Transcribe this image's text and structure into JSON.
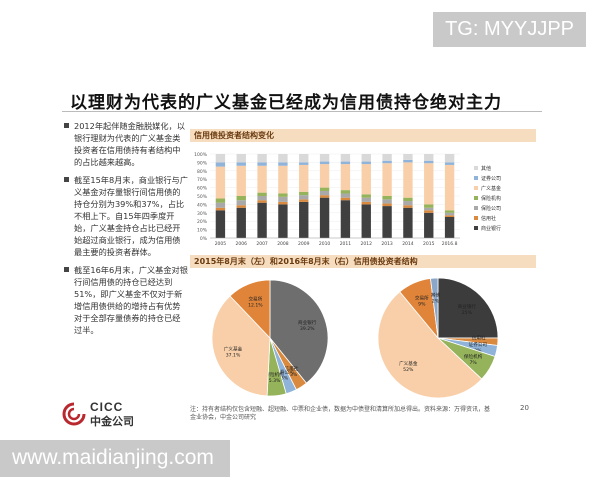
{
  "watermark_top": "TG: MYYJJPP",
  "watermark_bottom": "www.maidianjing.com",
  "title": "以理财为代表的广义基金已经成为信用债持仓绝对主力",
  "bullets": [
    "2012年起伴随金融脱媒化，以银行理财为代表的广义基金类投资者在信用债持有者结构中的占比越来越高。",
    "截至15年8月末，商业银行与广义基金对存量银行间信用债的持仓分别为39%和37%，占比不相上下。自15年四季度开始，广义基金持仓占比已经开始超过商业银行，成为信用债最主要的投资者群体。",
    "截至16年6月末，广义基金对银行间信用债的持仓已经达到51%，即广义基金不仅对于新增信用债供给的增持占有优势对于全部存量债券的持仓已经过半。"
  ],
  "panel1_title": "信用债投资者结构变化",
  "panel2_title": "2015年8月末（左）和2016年8月末（右）信用债投资者结构",
  "chart_data": [
    {
      "type": "bar",
      "stacked": true,
      "categories": [
        "2005",
        "2006",
        "2007",
        "2008",
        "2009",
        "2010",
        "2011",
        "2012",
        "2013",
        "2014",
        "2015",
        "2016.8"
      ],
      "y_ticks": [
        "0%",
        "10%",
        "20%",
        "30%",
        "40%",
        "50%",
        "60%",
        "70%",
        "80%",
        "90%",
        "100%"
      ],
      "ylim": [
        0,
        100
      ],
      "series": [
        {
          "name": "商业银行",
          "color": "#404040",
          "values": [
            33,
            36,
            42,
            40,
            43,
            48,
            45,
            40,
            38,
            36,
            30,
            25
          ]
        },
        {
          "name": "信用社",
          "color": "#d98a3e",
          "values": [
            3,
            3,
            3,
            3,
            3,
            3,
            3,
            3,
            3,
            3,
            3,
            2
          ]
        },
        {
          "name": "保险公司",
          "color": "#a9a9a9",
          "values": [
            6,
            6,
            5,
            6,
            5,
            5,
            5,
            5,
            5,
            5,
            3,
            3
          ]
        },
        {
          "name": "保险机构",
          "color": "#95b35a",
          "values": [
            5,
            5,
            4,
            4,
            4,
            4,
            4,
            4,
            4,
            4,
            4,
            3
          ]
        },
        {
          "name": "广义基金",
          "color": "#f8cfa8",
          "values": [
            38,
            36,
            32,
            33,
            32,
            28,
            31,
            36,
            39,
            42,
            49,
            54
          ]
        },
        {
          "name": "证券公司",
          "color": "#8fb3d9",
          "values": [
            5,
            4,
            4,
            4,
            3,
            3,
            3,
            3,
            3,
            3,
            3,
            3
          ]
        },
        {
          "name": "其他",
          "color": "#d9d9d9",
          "values": [
            10,
            10,
            10,
            10,
            10,
            9,
            9,
            9,
            8,
            7,
            8,
            10
          ]
        }
      ],
      "legend_position": "right"
    },
    {
      "type": "pie",
      "slices": [
        {
          "label": "商业银行",
          "value": 39.2,
          "display": "39.2%",
          "color": "#6e6e6e"
        },
        {
          "label": "信用社",
          "value": 3.3,
          "display": "3.3%",
          "color": "#d98a3e"
        },
        {
          "label": "证券公司",
          "value": 3.0,
          "display": "3%",
          "color": "#8fb3d9"
        },
        {
          "label": "保险机构",
          "value": 5.3,
          "display": "5.3%",
          "color": "#95b35a"
        },
        {
          "label": "广义基金",
          "value": 37.1,
          "display": "37.1%",
          "color": "#f8cfa8"
        },
        {
          "label": "交易所",
          "value": 12.1,
          "display": "12.1%",
          "color": "#e0843a"
        }
      ]
    },
    {
      "type": "pie",
      "slices": [
        {
          "label": "商业银行",
          "value": 25,
          "display": "25%",
          "color": "#3c3c3c"
        },
        {
          "label": "信用社",
          "value": 2,
          "display": "2%",
          "color": "#d98a3e"
        },
        {
          "label": "证券公司",
          "value": 3,
          "display": "3%",
          "color": "#8fb3d9"
        },
        {
          "label": "保险机构",
          "value": 7,
          "display": "7%",
          "color": "#95b35a"
        },
        {
          "label": "广义基金",
          "value": 52,
          "display": "52%",
          "color": "#f8cfa8"
        },
        {
          "label": "交易所",
          "value": 9,
          "display": "9%",
          "color": "#e0843a"
        },
        {
          "label": "其他",
          "value": 2,
          "display": "2%",
          "color": "#8aa6c8"
        }
      ]
    }
  ],
  "footnote": "注：持有者结构仅包含短融、超短融、中票和企业债，数据为中债登和清算所加总得出。资料来源：万得资讯，基金业协会，中金公司研究",
  "page_number": "20",
  "logo": {
    "en": "CICC",
    "cn": "中金公司",
    "color": "#b8282e"
  }
}
